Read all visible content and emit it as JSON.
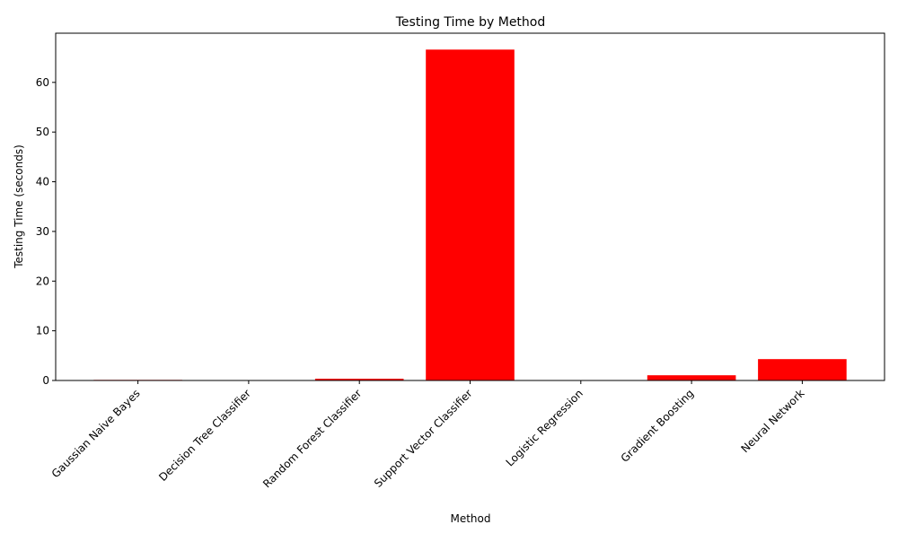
{
  "chart_data": {
    "type": "bar",
    "title": "Testing Time by Method",
    "xlabel": "Method",
    "ylabel": "Testing Time (seconds)",
    "categories": [
      "Gaussian Naive Bayes",
      "Decision Tree Classifier",
      "Random Forest Classifier",
      "Support Vector Classifier",
      "Logistic Regression",
      "Gradient Boosting",
      "Neural Network"
    ],
    "values": [
      0.12,
      0.01,
      0.35,
      66.6,
      0.02,
      1.05,
      4.3
    ],
    "ylim": [
      0,
      69.9
    ],
    "yticks": [
      0,
      10,
      20,
      30,
      40,
      50,
      60
    ],
    "bar_color": "#ff0000",
    "grid": false,
    "legend": "none"
  }
}
